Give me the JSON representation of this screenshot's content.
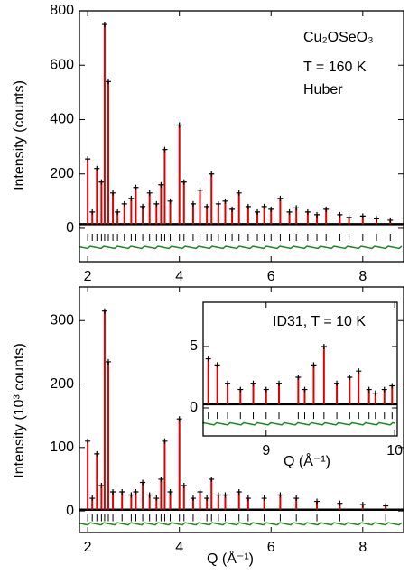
{
  "chart_data": [
    {
      "type": "profile",
      "annotations": [
        "Cu₂OSeO₃",
        "T = 160 K",
        "Huber"
      ],
      "ylabel": "Intensity (counts)",
      "xlim": [
        1.82,
        8.89
      ],
      "ylim": [
        -123,
        800
      ],
      "xticks": [
        2,
        4,
        6,
        8
      ],
      "yticks": [
        0,
        200,
        400,
        600,
        800
      ],
      "background": 15,
      "x": [
        2.0,
        2.1,
        2.2,
        2.3,
        2.37,
        2.45,
        2.55,
        2.65,
        2.8,
        2.95,
        3.05,
        3.2,
        3.35,
        3.5,
        3.6,
        3.68,
        3.8,
        4.0,
        4.1,
        4.3,
        4.45,
        4.6,
        4.7,
        4.85,
        5.0,
        5.15,
        5.3,
        5.5,
        5.7,
        5.85,
        6.0,
        6.2,
        6.4,
        6.55,
        6.8,
        7.0,
        7.2,
        7.5,
        7.7,
        8.0,
        8.3,
        8.6
      ],
      "series": [
        {
          "color": "#000000",
          "values": [
            255,
            60,
            220,
            170,
            750,
            540,
            130,
            60,
            90,
            110,
            150,
            80,
            130,
            90,
            160,
            290,
            100,
            380,
            170,
            90,
            140,
            80,
            200,
            90,
            100,
            70,
            130,
            80,
            60,
            80,
            70,
            110,
            60,
            75,
            60,
            50,
            70,
            50,
            40,
            45,
            35,
            30
          ]
        },
        {
          "color": "#e00000",
          "values": [
            255,
            60,
            220,
            170,
            750,
            540,
            130,
            60,
            90,
            110,
            150,
            80,
            130,
            90,
            160,
            290,
            100,
            380,
            170,
            90,
            140,
            80,
            200,
            90,
            100,
            70,
            130,
            80,
            60,
            80,
            70,
            110,
            60,
            75,
            60,
            50,
            70,
            50,
            40,
            45,
            35,
            30
          ]
        }
      ]
    },
    {
      "type": "profile",
      "ylabel": "Intensity (10³ counts)",
      "xlabel": "Q (Å⁻¹)",
      "xlim": [
        1.82,
        8.89
      ],
      "ylim": [
        -34,
        353
      ],
      "xticks": [
        2,
        4,
        6,
        8
      ],
      "yticks": [
        0,
        100,
        200,
        300
      ],
      "background": 2,
      "x": [
        2.0,
        2.1,
        2.2,
        2.3,
        2.37,
        2.45,
        2.55,
        2.75,
        2.95,
        3.05,
        3.2,
        3.35,
        3.5,
        3.6,
        3.68,
        3.8,
        4.0,
        4.1,
        4.3,
        4.45,
        4.6,
        4.7,
        4.85,
        5.0,
        5.3,
        5.5,
        5.85,
        6.2,
        6.55,
        7.0,
        7.5,
        8.0,
        8.5
      ],
      "series": [
        {
          "color": "#000000",
          "values": [
            110,
            20,
            90,
            40,
            315,
            235,
            30,
            30,
            25,
            30,
            45,
            25,
            20,
            50,
            110,
            30,
            145,
            40,
            20,
            30,
            20,
            50,
            25,
            25,
            30,
            20,
            20,
            25,
            20,
            15,
            12,
            10,
            8
          ]
        },
        {
          "color": "#e00000",
          "values": [
            110,
            20,
            90,
            40,
            315,
            235,
            30,
            30,
            25,
            30,
            45,
            25,
            20,
            50,
            110,
            30,
            145,
            40,
            20,
            30,
            20,
            50,
            25,
            25,
            30,
            20,
            20,
            25,
            20,
            15,
            12,
            10,
            8
          ]
        }
      ]
    },
    {
      "type": "profile",
      "annotations": [
        "ID31, T = 10 K"
      ],
      "xlabel": "Q (Å⁻¹)",
      "xlim": [
        8.51,
        10.02
      ],
      "ylim": [
        -2.28,
        8.6
      ],
      "xticks": [
        9,
        10
      ],
      "yticks": [
        0,
        5
      ],
      "background": 0.3,
      "x": [
        8.55,
        8.62,
        8.7,
        8.8,
        8.9,
        9.0,
        9.1,
        9.25,
        9.3,
        9.37,
        9.45,
        9.55,
        9.65,
        9.72,
        9.8,
        9.85,
        9.92,
        9.98
      ],
      "series": [
        {
          "color": "#000000",
          "values": [
            4,
            3.5,
            2,
            1.5,
            2,
            1.5,
            2,
            2.5,
            1.5,
            3.5,
            5,
            2,
            2.5,
            3,
            1.5,
            1.2,
            1.5,
            1.8
          ]
        },
        {
          "color": "#e00000",
          "values": [
            4,
            3.5,
            2,
            1.5,
            2,
            1.5,
            2,
            2.5,
            1.5,
            3.5,
            5,
            2,
            2.5,
            3,
            1.5,
            1.2,
            1.5,
            1.8
          ]
        }
      ]
    }
  ]
}
